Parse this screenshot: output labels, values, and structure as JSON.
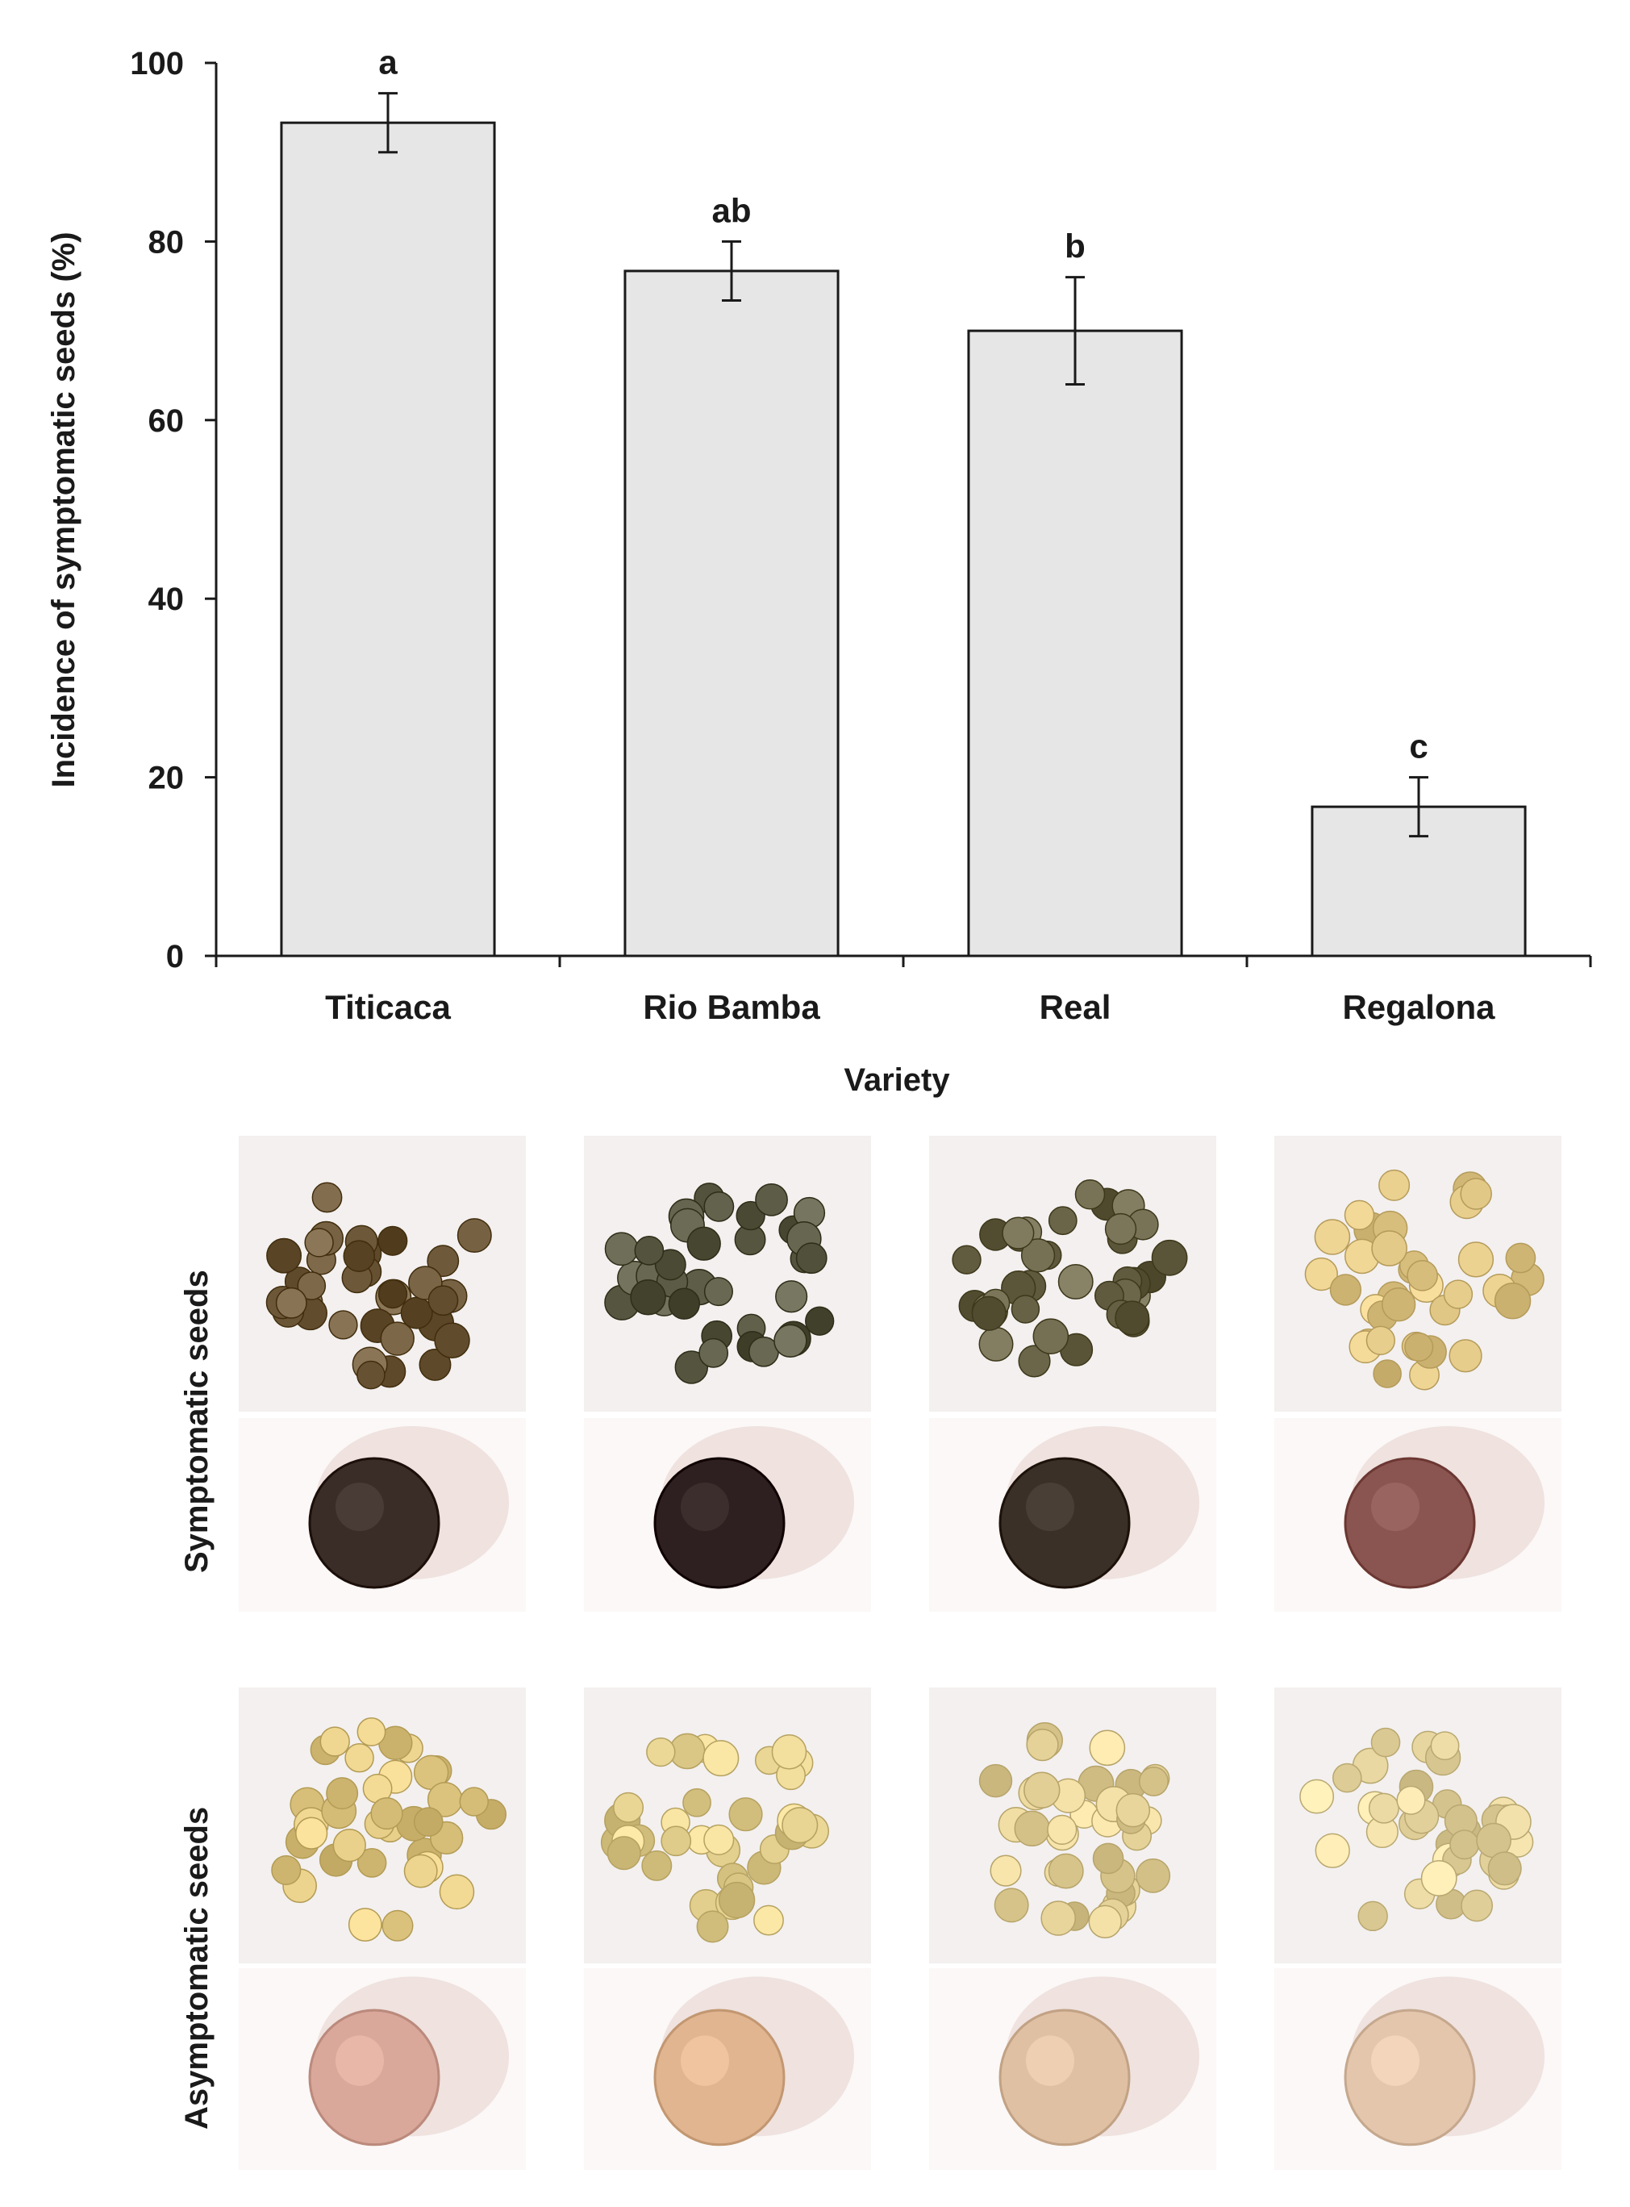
{
  "chart_data": {
    "type": "bar",
    "categories": [
      "Titicaca",
      "Rio Bamba",
      "Real",
      "Regalona"
    ],
    "values": [
      93.3,
      76.7,
      70.0,
      16.7
    ],
    "errors": [
      3.3,
      3.3,
      6.0,
      3.3
    ],
    "significance_letters": [
      "a",
      "ab",
      "b",
      "c"
    ],
    "xlabel": "Variety",
    "ylabel": "Incidence of symptomatic seeds (%)",
    "ylim": [
      0,
      100
    ],
    "yticks": [
      0,
      20,
      40,
      60,
      80,
      100
    ],
    "bar_color": "#e6e6e6",
    "grid": false
  },
  "photo_panels": {
    "rows": [
      {
        "label": "Symptomatic seeds",
        "tones": [
          "#6e5a3a",
          "#5a5a45",
          "#6a6548",
          "#e2c887"
        ],
        "closeup_tones": [
          "#3a2d28",
          "#2e2020",
          "#3b3028",
          "#8a5550"
        ]
      },
      {
        "label": "Asymptomatic seeds",
        "tones": [
          "#e0c882",
          "#e3cf8e",
          "#e4d197",
          "#e6d59e"
        ],
        "closeup_tones": [
          "#d9a89a",
          "#e0b58f",
          "#e0c0a3",
          "#e3c6ac"
        ]
      }
    ],
    "background": "#f3f0ef"
  }
}
